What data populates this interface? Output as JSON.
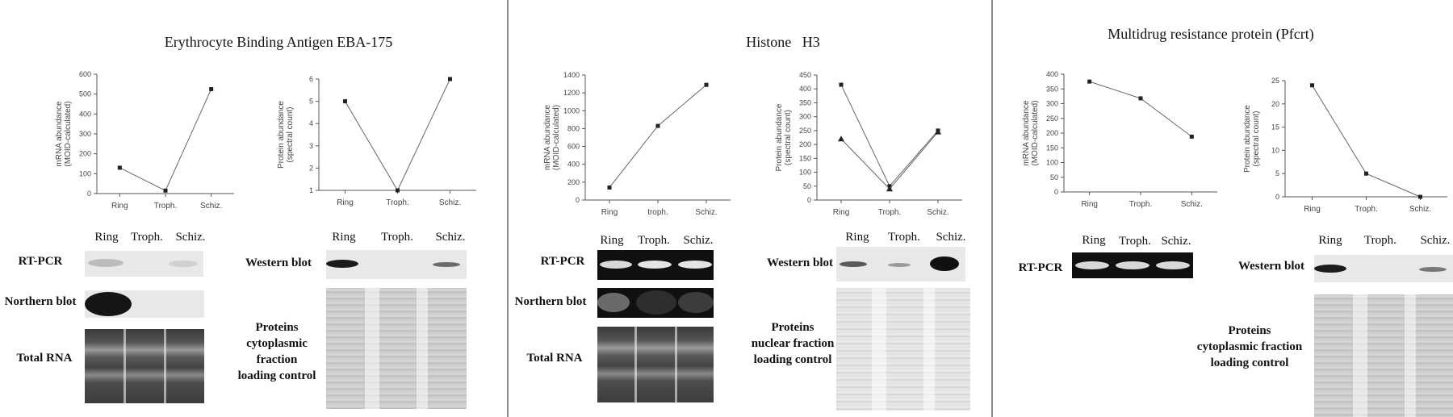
{
  "panels": [
    {
      "title": "Erythrocyte Binding Antigen EBA-175",
      "lanes": [
        "Ring",
        "Troph.",
        "Schiz."
      ],
      "rows_left": [
        "RT-PCR",
        "Northern blot",
        "Total RNA"
      ],
      "blot_right_label": "Western blot",
      "protein_label_lines": [
        "Proteins",
        "cytoplasmic fraction",
        "loading control"
      ]
    },
    {
      "title": "Histone   H3",
      "lanes": [
        "Ring",
        "Troph.",
        "Schiz."
      ],
      "rows_left": [
        "RT-PCR",
        "Northern blot",
        "Total RNA"
      ],
      "blot_right_label": "Western blot",
      "protein_label_lines": [
        "Proteins",
        "nuclear fraction",
        "loading control"
      ]
    },
    {
      "title": "Multidrug resistance protein (Pfcrt)",
      "lanes": [
        "Ring",
        "Troph.",
        "Schiz."
      ],
      "rows_left": [
        "RT-PCR"
      ],
      "blot_right_label": "Western blot",
      "protein_label_lines": [
        "Proteins",
        "cytoplasmic fraction",
        "loading control"
      ]
    }
  ],
  "chart_data": [
    {
      "type": "line",
      "categories": [
        "Ring",
        "Troph.",
        "Schiz."
      ],
      "ylabel": "mRNA abundance (MOID-calculated)",
      "ylim": [
        0,
        600
      ],
      "yticks": [
        0,
        100,
        200,
        300,
        400,
        500,
        600
      ],
      "series": [
        {
          "values": [
            130,
            15,
            525
          ]
        }
      ]
    },
    {
      "type": "line",
      "categories": [
        "Ring",
        "Troph.",
        "Schiz."
      ],
      "ylabel": "Protein abundance (spectral count)",
      "ylim": [
        1,
        6
      ],
      "yticks": [
        1,
        2,
        3,
        4,
        5,
        6
      ],
      "series": [
        {
          "values": [
            5,
            1,
            6
          ]
        }
      ]
    },
    {
      "type": "line",
      "categories": [
        "Ring",
        "troph.",
        "Schiz."
      ],
      "ylabel": "mRNA abundance (MOID-calculated)",
      "ylim": [
        0,
        1400
      ],
      "yticks": [
        0,
        200,
        400,
        600,
        800,
        1000,
        1200,
        1400
      ],
      "series": [
        {
          "values": [
            140,
            830,
            1290
          ]
        }
      ]
    },
    {
      "type": "line",
      "categories": [
        "Ring",
        "Troph.",
        "Schiz."
      ],
      "ylabel": "Protein abundance (spectral count)",
      "ylim": [
        0,
        450
      ],
      "yticks": [
        0,
        50,
        100,
        150,
        200,
        250,
        300,
        350,
        400,
        450
      ],
      "series": [
        {
          "marker": "square",
          "values": [
            415,
            50,
            250
          ]
        },
        {
          "marker": "triangle",
          "values": [
            220,
            40,
            245
          ]
        }
      ]
    },
    {
      "type": "line",
      "categories": [
        "Ring",
        "Troph.",
        "Schiz."
      ],
      "ylabel": "mRNA abundance (MOID-calculated)",
      "ylim": [
        0,
        400
      ],
      "yticks": [
        0,
        50,
        100,
        150,
        200,
        250,
        300,
        350,
        400
      ],
      "series": [
        {
          "values": [
            375,
            318,
            188
          ]
        }
      ]
    },
    {
      "type": "line",
      "categories": [
        "Ring",
        "Troph.",
        "Schiz."
      ],
      "ylabel": "Protein abundance (spectral count)",
      "ylim": [
        0,
        25
      ],
      "yticks": [
        0,
        5,
        10,
        15,
        20,
        25
      ],
      "series": [
        {
          "values": [
            24,
            5,
            0
          ]
        }
      ]
    }
  ]
}
